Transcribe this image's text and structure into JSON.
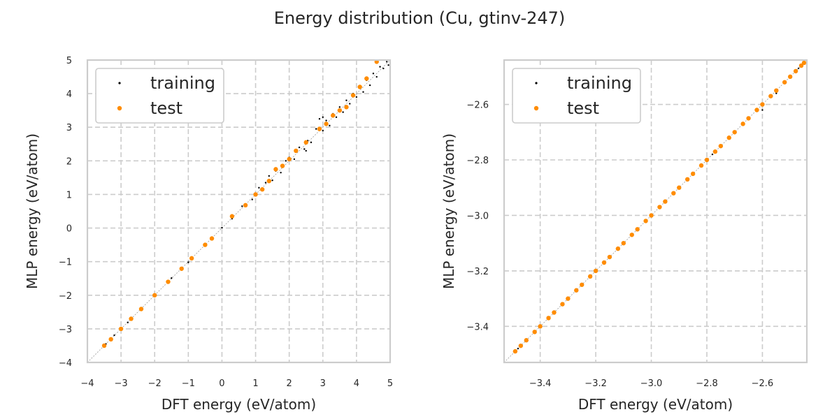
{
  "figure": {
    "title": "Energy distribution (Cu, gtinv-247)"
  },
  "colors": {
    "training": "#000000",
    "test": "#ff8c00",
    "grid": "#cccccc",
    "frame": "#cccccc",
    "diagonal": "#999999"
  },
  "chart_data": [
    {
      "type": "scatter",
      "xlabel": "DFT energy (eV/atom)",
      "ylabel": "MLP energy (eV/atom)",
      "xlim": [
        -4,
        5
      ],
      "ylim": [
        -4,
        5
      ],
      "xticks": [
        -4,
        -3,
        -2,
        -1,
        0,
        1,
        2,
        3,
        4,
        5
      ],
      "yticks": [
        -4,
        -3,
        -2,
        -1,
        0,
        1,
        2,
        3,
        4,
        5
      ],
      "xtick_labels": [
        "−4",
        "−3",
        "−2",
        "−1",
        "0",
        "1",
        "2",
        "3",
        "4",
        "5"
      ],
      "ytick_labels": [
        "−4",
        "−3",
        "−2",
        "−1",
        "0",
        "1",
        "2",
        "3",
        "4",
        "5"
      ],
      "grid": true,
      "legend": "upper-left",
      "diagonal": true,
      "series": [
        {
          "name": "training",
          "marker_size": 2,
          "points": [
            [
              -3.45,
              -3.45
            ],
            [
              -3.2,
              -3.19
            ],
            [
              -2.8,
              -2.81
            ],
            [
              -2.4,
              -2.4
            ],
            [
              -2.0,
              -2.01
            ],
            [
              -1.5,
              -1.49
            ],
            [
              -1.0,
              -1.02
            ],
            [
              -0.5,
              -0.48
            ],
            [
              0.0,
              0.01
            ],
            [
              0.3,
              0.28
            ],
            [
              0.6,
              0.65
            ],
            [
              0.9,
              0.85
            ],
            [
              1.1,
              1.2
            ],
            [
              1.3,
              1.35
            ],
            [
              1.4,
              1.55
            ],
            [
              1.5,
              1.42
            ],
            [
              1.6,
              1.7
            ],
            [
              1.75,
              1.65
            ],
            [
              1.9,
              2.0
            ],
            [
              2.0,
              2.1
            ],
            [
              2.15,
              2.05
            ],
            [
              2.3,
              2.4
            ],
            [
              2.45,
              2.35
            ],
            [
              2.55,
              2.6
            ],
            [
              2.65,
              2.55
            ],
            [
              2.8,
              2.95
            ],
            [
              2.9,
              3.25
            ],
            [
              3.0,
              2.9
            ],
            [
              3.1,
              3.2
            ],
            [
              3.2,
              3.05
            ],
            [
              3.3,
              3.4
            ],
            [
              3.4,
              3.3
            ],
            [
              3.5,
              3.6
            ],
            [
              3.6,
              3.45
            ],
            [
              3.7,
              3.8
            ],
            [
              3.8,
              3.7
            ],
            [
              3.9,
              4.0
            ],
            [
              4.0,
              3.9
            ],
            [
              4.1,
              4.2
            ],
            [
              4.2,
              4.05
            ],
            [
              4.3,
              4.4
            ],
            [
              4.4,
              4.25
            ],
            [
              4.5,
              4.6
            ],
            [
              4.6,
              4.5
            ],
            [
              4.7,
              4.8
            ],
            [
              4.8,
              4.75
            ],
            [
              4.9,
              4.95
            ],
            [
              4.95,
              4.85
            ],
            [
              3.0,
              3.3
            ],
            [
              2.5,
              2.3
            ]
          ]
        },
        {
          "name": "test",
          "marker_size": 3,
          "points": [
            [
              -3.5,
              -3.5
            ],
            [
              -3.3,
              -3.31
            ],
            [
              -3.0,
              -3.0
            ],
            [
              -2.7,
              -2.7
            ],
            [
              -2.4,
              -2.41
            ],
            [
              -2.0,
              -2.0
            ],
            [
              -1.6,
              -1.6
            ],
            [
              -1.2,
              -1.21
            ],
            [
              -0.9,
              -0.9
            ],
            [
              -0.5,
              -0.5
            ],
            [
              -0.3,
              -0.31
            ],
            [
              0.3,
              0.35
            ],
            [
              0.7,
              0.68
            ],
            [
              1.0,
              1.0
            ],
            [
              1.2,
              1.15
            ],
            [
              1.4,
              1.4
            ],
            [
              1.6,
              1.75
            ],
            [
              1.8,
              1.85
            ],
            [
              2.0,
              2.05
            ],
            [
              2.2,
              2.3
            ],
            [
              2.5,
              2.55
            ],
            [
              2.9,
              2.95
            ],
            [
              3.1,
              3.1
            ],
            [
              3.3,
              3.35
            ],
            [
              3.5,
              3.5
            ],
            [
              3.7,
              3.6
            ],
            [
              3.9,
              3.95
            ],
            [
              4.1,
              4.2
            ],
            [
              4.3,
              4.45
            ],
            [
              4.6,
              4.95
            ]
          ]
        }
      ]
    },
    {
      "type": "scatter",
      "xlabel": "DFT energy (eV/atom)",
      "ylabel": "MLP energy (eV/atom)",
      "xlim": [
        -3.53,
        -2.44
      ],
      "ylim": [
        -3.53,
        -2.44
      ],
      "xticks": [
        -3.4,
        -3.2,
        -3.0,
        -2.8,
        -2.6
      ],
      "yticks": [
        -3.4,
        -3.2,
        -3.0,
        -2.8,
        -2.6
      ],
      "xtick_labels": [
        "−3.4",
        "−3.2",
        "−3.0",
        "−2.8",
        "−2.6"
      ],
      "ytick_labels": [
        "−3.4",
        "−3.2",
        "−3.0",
        "−2.8",
        "−2.6"
      ],
      "grid": true,
      "legend": "upper-left",
      "diagonal": true,
      "series": [
        {
          "name": "training",
          "marker_size": 2,
          "points": [
            [
              -3.48,
              -3.48
            ],
            [
              -3.3,
              -3.3
            ],
            [
              -3.1,
              -3.1
            ],
            [
              -2.9,
              -2.9
            ],
            [
              -2.78,
              -2.78
            ],
            [
              -2.6,
              -2.62
            ],
            [
              -2.55,
              -2.56
            ],
            [
              -2.5,
              -2.5
            ],
            [
              -2.47,
              -2.47
            ],
            [
              -2.46,
              -2.46
            ]
          ]
        },
        {
          "name": "test",
          "marker_size": 3,
          "points": [
            [
              -3.49,
              -3.49
            ],
            [
              -3.47,
              -3.47
            ],
            [
              -3.45,
              -3.45
            ],
            [
              -3.42,
              -3.42
            ],
            [
              -3.4,
              -3.4
            ],
            [
              -3.37,
              -3.37
            ],
            [
              -3.35,
              -3.35
            ],
            [
              -3.32,
              -3.32
            ],
            [
              -3.3,
              -3.3
            ],
            [
              -3.27,
              -3.27
            ],
            [
              -3.25,
              -3.25
            ],
            [
              -3.22,
              -3.22
            ],
            [
              -3.2,
              -3.2
            ],
            [
              -3.17,
              -3.17
            ],
            [
              -3.15,
              -3.15
            ],
            [
              -3.12,
              -3.12
            ],
            [
              -3.1,
              -3.1
            ],
            [
              -3.07,
              -3.07
            ],
            [
              -3.05,
              -3.05
            ],
            [
              -3.02,
              -3.02
            ],
            [
              -3.0,
              -3.0
            ],
            [
              -2.97,
              -2.97
            ],
            [
              -2.95,
              -2.95
            ],
            [
              -2.92,
              -2.92
            ],
            [
              -2.9,
              -2.9
            ],
            [
              -2.87,
              -2.87
            ],
            [
              -2.85,
              -2.85
            ],
            [
              -2.82,
              -2.82
            ],
            [
              -2.8,
              -2.8
            ],
            [
              -2.77,
              -2.77
            ],
            [
              -2.75,
              -2.75
            ],
            [
              -2.72,
              -2.72
            ],
            [
              -2.7,
              -2.7
            ],
            [
              -2.67,
              -2.67
            ],
            [
              -2.65,
              -2.65
            ],
            [
              -2.62,
              -2.62
            ],
            [
              -2.6,
              -2.6
            ],
            [
              -2.57,
              -2.57
            ],
            [
              -2.55,
              -2.55
            ],
            [
              -2.52,
              -2.52
            ],
            [
              -2.5,
              -2.5
            ],
            [
              -2.48,
              -2.48
            ],
            [
              -2.46,
              -2.46
            ],
            [
              -2.45,
              -2.45
            ]
          ]
        }
      ]
    }
  ]
}
